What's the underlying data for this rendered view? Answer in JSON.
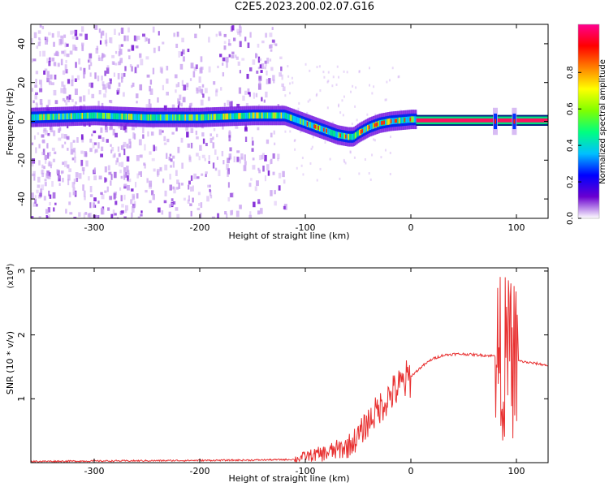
{
  "title": "C2E5.2023.200.02.07.G16",
  "colors": {
    "trace": "#e83030",
    "scatter_low": "#c8a0f0",
    "scatter_mid": "#6a00d0"
  },
  "chart_data": [
    {
      "type": "heatmap",
      "name": "spectrogram",
      "xlabel": "Height of straight line (km)",
      "ylabel": "Frequency (Hz)",
      "xlim": [
        -360,
        130
      ],
      "ylim": [
        -50,
        50
      ],
      "xticks": [
        -300,
        -200,
        -100,
        0,
        100
      ],
      "yticks": [
        -40,
        -20,
        0,
        20,
        40
      ],
      "colorbar": {
        "label": "Normalized spectral amplitude",
        "range": [
          0,
          1
        ],
        "ticks": [
          "0.0",
          "0.2",
          "0.4",
          "0.6",
          "0.8"
        ],
        "colormap": [
          "#ffffff",
          "#6a00d0",
          "#0000ff",
          "#00c0ff",
          "#00ff80",
          "#80ff00",
          "#ffff00",
          "#ff8000",
          "#ff0000",
          "#ff0090"
        ]
      },
      "ridge": {
        "x": [
          -360,
          -300,
          -250,
          -200,
          -150,
          -120,
          -100,
          -85,
          -70,
          -60,
          -55,
          -50,
          -40,
          -30,
          -20,
          -10,
          0,
          130
        ],
        "y": [
          2,
          3,
          2,
          2,
          3,
          3,
          -1,
          -4,
          -7,
          -8,
          -8,
          -6,
          -3,
          -1,
          0,
          0.5,
          1,
          0.5
        ]
      },
      "strong_band": {
        "x": [
          5,
          130
        ],
        "y": 0.5
      },
      "burst_x": [
        80,
        98
      ]
    },
    {
      "type": "line",
      "name": "snr",
      "xlabel": "Height of straight line (km)",
      "ylabel": "SNR (10 * v/v)",
      "y_scale_note": "(x10",
      "y_scale_exp": "4",
      "xlim": [
        -360,
        130
      ],
      "ylim": [
        0,
        3.05
      ],
      "xticks": [
        -300,
        -200,
        -100,
        0,
        100
      ],
      "yticks": [
        1,
        2,
        3
      ],
      "series": [
        {
          "x": [
            -360,
            -250,
            -150,
            -110,
            -100,
            -80,
            -60,
            -50,
            -40,
            -30,
            -20,
            -10,
            0,
            10,
            20,
            30,
            40,
            50,
            60,
            70,
            80,
            85,
            90,
            95,
            100,
            110,
            120,
            130
          ],
          "y": [
            0.02,
            0.03,
            0.04,
            0.05,
            0.1,
            0.15,
            0.25,
            0.4,
            0.65,
            0.85,
            1.05,
            1.2,
            1.35,
            1.5,
            1.62,
            1.68,
            1.7,
            1.7,
            1.69,
            1.68,
            1.67,
            1.65,
            1.64,
            1.63,
            1.6,
            1.57,
            1.55,
            1.52
          ]
        }
      ]
    }
  ]
}
